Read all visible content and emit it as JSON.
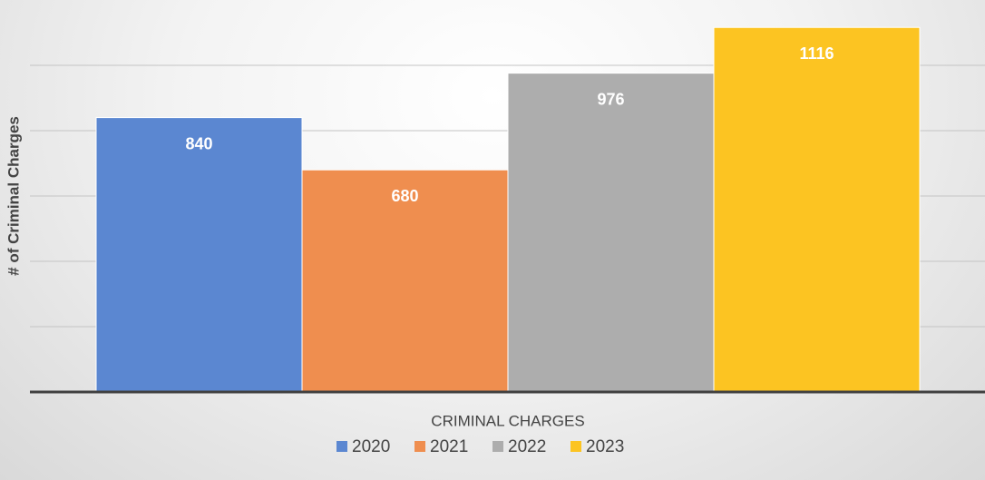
{
  "chart_data": {
    "type": "bar",
    "y_label": "# of Criminal Charges",
    "categories": [
      "CRIMINAL CHARGES"
    ],
    "series": [
      {
        "name": "2020",
        "color": "#5b87d1",
        "values": [
          840
        ]
      },
      {
        "name": "2021",
        "color": "#ef8e4f",
        "values": [
          680
        ]
      },
      {
        "name": "2022",
        "color": "#adadad",
        "values": [
          976
        ]
      },
      {
        "name": "2023",
        "color": "#fcc422",
        "values": [
          1116
        ]
      }
    ],
    "ylim": [
      0,
      1200
    ],
    "yticks": [
      0,
      200,
      400,
      600,
      800,
      1000
    ],
    "grid": true,
    "legend": "bottom"
  }
}
